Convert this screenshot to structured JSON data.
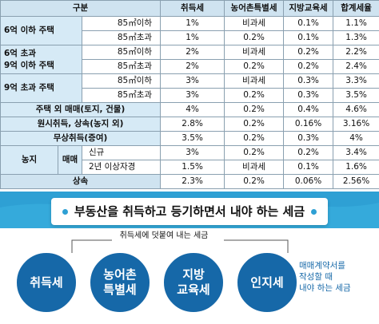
{
  "table": {
    "headers": [
      "구분",
      "취득세",
      "농어촌특별세",
      "지방교육세",
      "합계세율"
    ],
    "sections": {
      "s1": "6억 이하 주택",
      "s2a": "6억 초과",
      "s2b": "9억 이하 주택",
      "s3": "9억 초과 주택",
      "s4": "주택 외 매매(토지, 건물)",
      "s5": "원시취득, 상속(농지 외)",
      "s6": "무상취득(증여)",
      "s7": "농지",
      "s7sub": "매매",
      "s8": "상속"
    },
    "rows": [
      {
        "sub": "85㎡이하",
        "v": [
          "1%",
          "비과세",
          "0.1%",
          "1.1%"
        ]
      },
      {
        "sub": "85㎡초과",
        "v": [
          "1%",
          "0.2%",
          "0.1%",
          "1.3%"
        ]
      },
      {
        "sub": "85㎡이하",
        "v": [
          "2%",
          "비과세",
          "0.2%",
          "2.2%"
        ]
      },
      {
        "sub": "85㎡초과",
        "v": [
          "2%",
          "0.2%",
          "0.2%",
          "2.4%"
        ]
      },
      {
        "sub": "85㎡이하",
        "v": [
          "3%",
          "비과세",
          "0.3%",
          "3.3%"
        ]
      },
      {
        "sub": "85㎡초과",
        "v": [
          "3%",
          "0.2%",
          "0.3%",
          "3.5%"
        ]
      },
      {
        "sub": "",
        "v": [
          "4%",
          "0.2%",
          "0.4%",
          "4.6%"
        ]
      },
      {
        "sub": "",
        "v": [
          "2.8%",
          "0.2%",
          "0.16%",
          "3.16%"
        ]
      },
      {
        "sub": "",
        "v": [
          "3.5%",
          "0.2%",
          "0.3%",
          "4%"
        ]
      },
      {
        "sub": "신규",
        "v": [
          "3%",
          "0.2%",
          "0.2%",
          "3.4%"
        ]
      },
      {
        "sub": "2년 이상자경",
        "v": [
          "1.5%",
          "비과세",
          "0.1%",
          "1.6%"
        ]
      },
      {
        "sub": "",
        "v": [
          "2.3%",
          "0.2%",
          "0.06%",
          "2.56%"
        ]
      }
    ]
  },
  "banner": {
    "title": "부동산을 취득하고 등기하면서 내야 하는 세금",
    "bracket_label": "취득세에 덧붙여 내는 세금",
    "circles": [
      {
        "line1": "취득세",
        "line2": ""
      },
      {
        "line1": "농어촌",
        "line2": "특별세"
      },
      {
        "line1": "지방",
        "line2": "교육세"
      },
      {
        "line1": "인지세",
        "line2": ""
      }
    ],
    "note": [
      "매매계약서를",
      "작성할 때",
      "내야 하는 세금"
    ]
  },
  "colors": {
    "header_bg": "#cfe3f0",
    "label_bg": "#d6eaf6",
    "banner_bg": "#2ea0d4",
    "circle_bg": "#1668a8"
  }
}
